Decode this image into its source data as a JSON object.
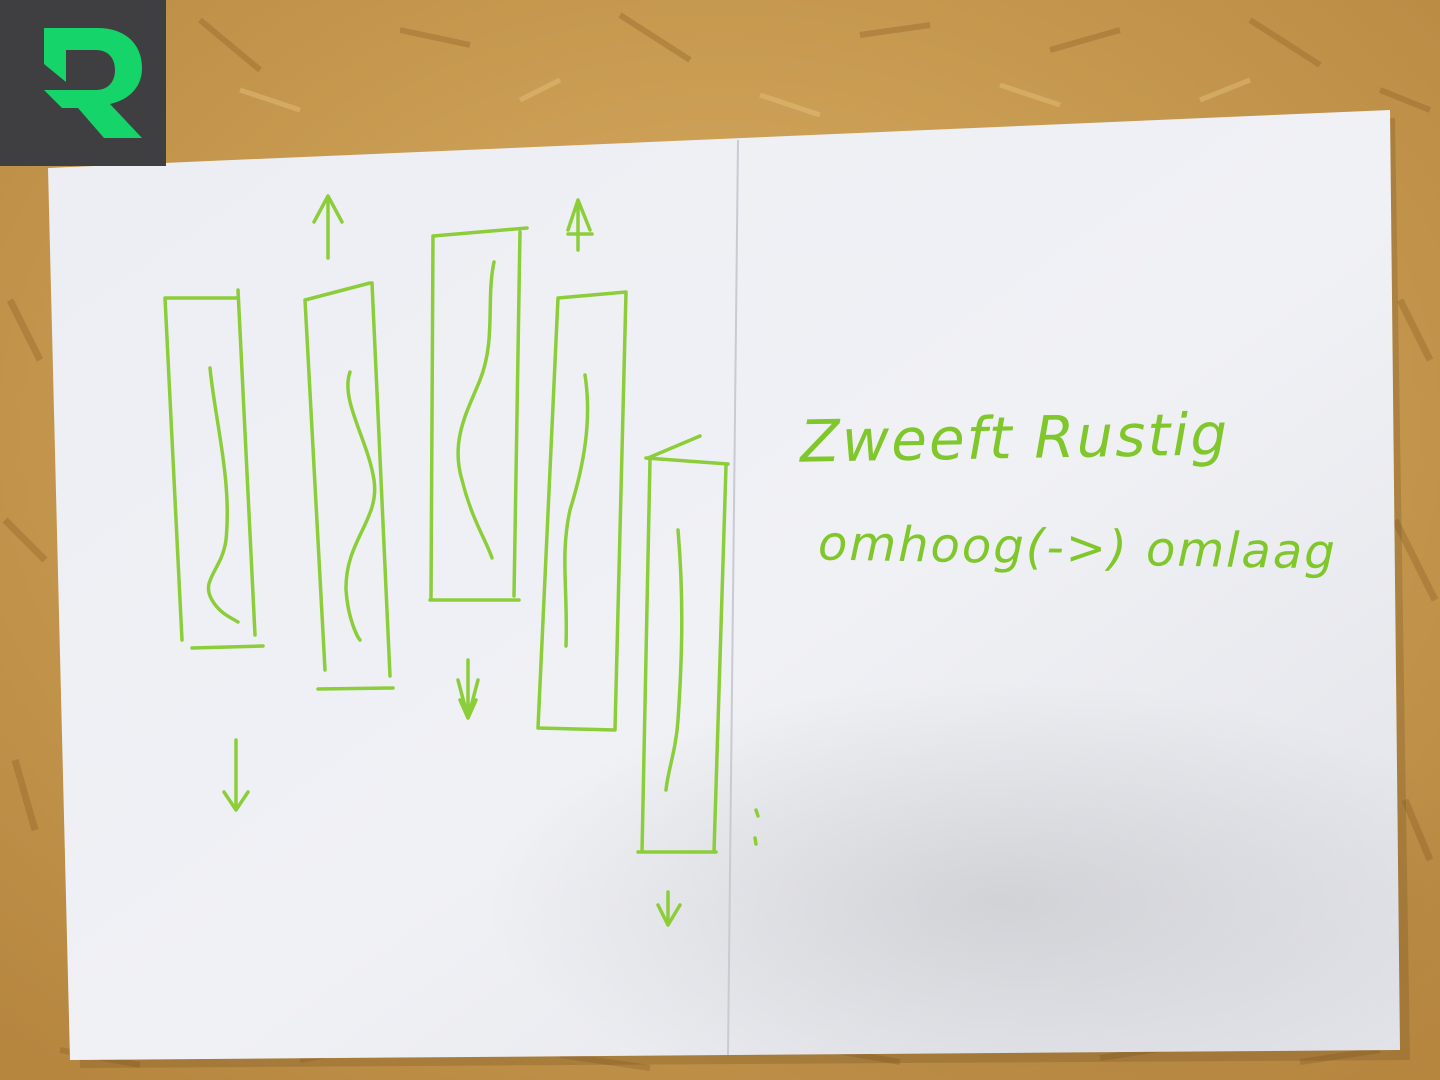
{
  "logo": {
    "letter": "R",
    "background": "#3f3f42",
    "color": "#15d46a"
  },
  "note": {
    "line1": "Zweeft Rustig",
    "line2": "omhoog(->) omlaag",
    "ink_color": "#7fc72a"
  },
  "colors": {
    "board": "#c99a4e",
    "paper": "#ecedf2",
    "marker": "#8ccd3a"
  }
}
